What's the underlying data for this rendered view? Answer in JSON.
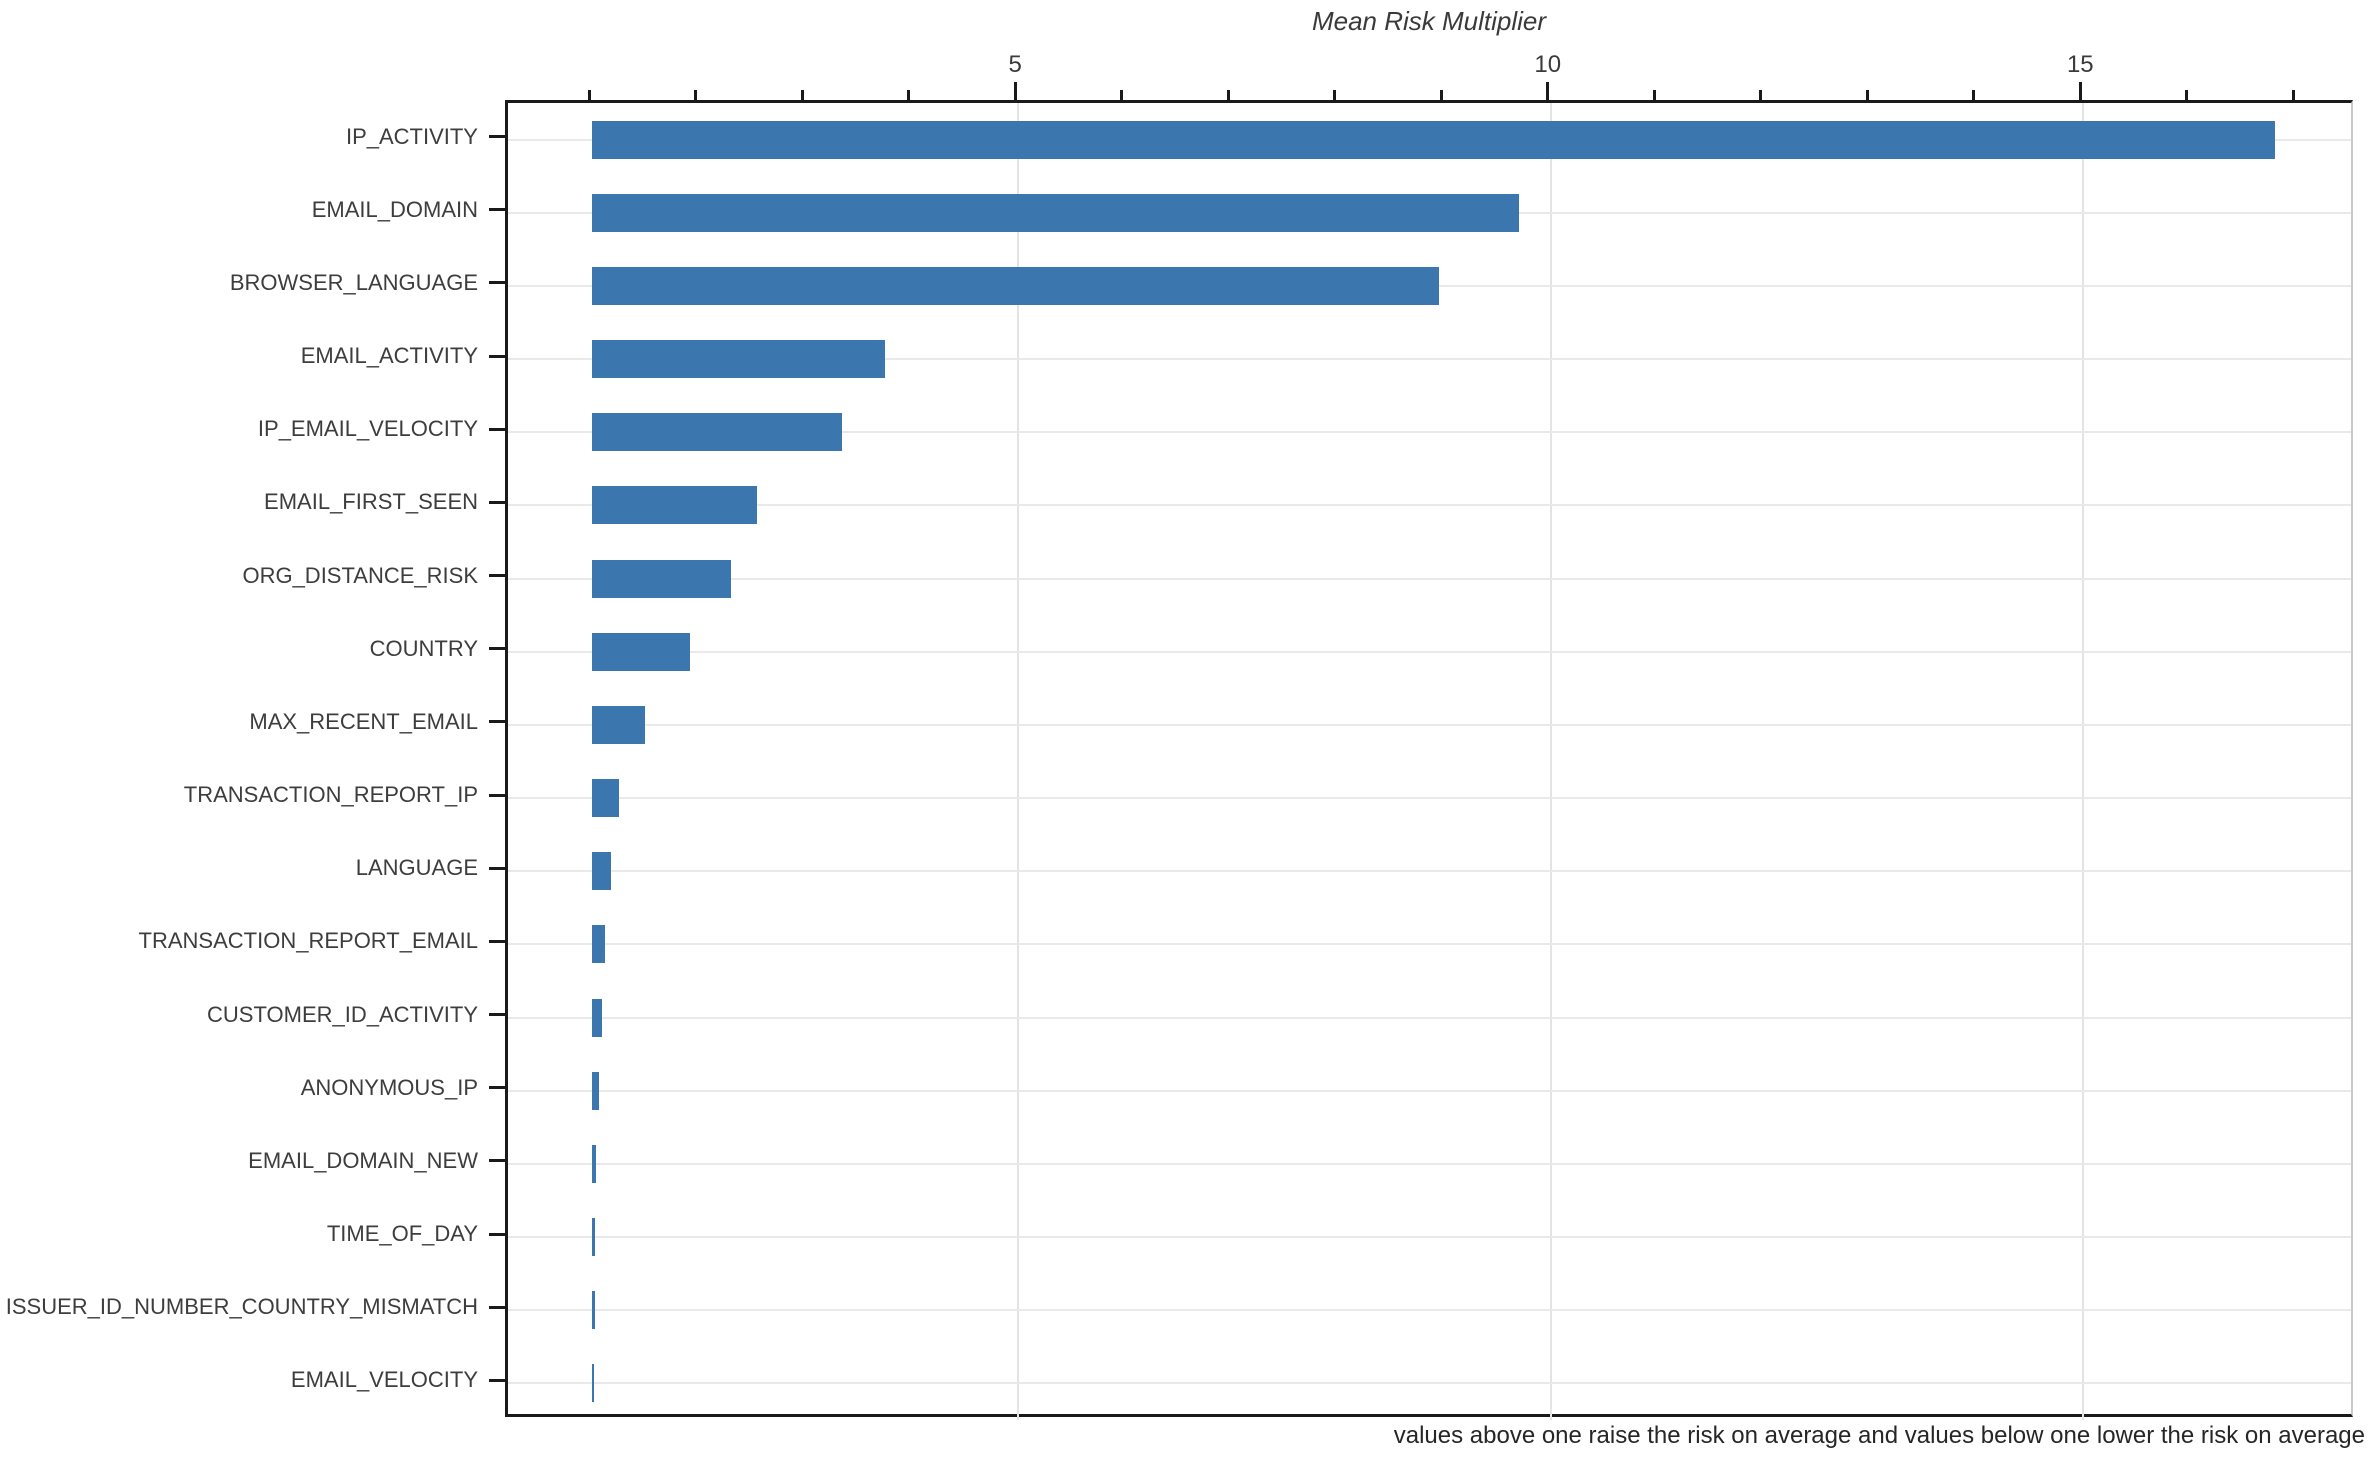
{
  "figure": {
    "title": "Mean Risk Multiplier",
    "footnote": "values above one raise the risk on average and values below one lower the risk on average"
  },
  "chart_data": {
    "type": "bar",
    "orientation": "horizontal",
    "title": "Mean Risk Multiplier",
    "xlabel": "Mean Risk Multiplier",
    "ylabel": "",
    "categories": [
      "IP_ACTIVITY",
      "EMAIL_DOMAIN",
      "BROWSER_LANGUAGE",
      "EMAIL_ACTIVITY",
      "IP_EMAIL_VELOCITY",
      "EMAIL_FIRST_SEEN",
      "ORG_DISTANCE_RISK",
      "COUNTRY",
      "MAX_RECENT_EMAIL",
      "TRANSACTION_REPORT_IP",
      "LANGUAGE",
      "TRANSACTION_REPORT_EMAIL",
      "CUSTOMER_ID_ACTIVITY",
      "ANONYMOUS_IP",
      "EMAIL_DOMAIN_NEW",
      "TIME_OF_DAY",
      "ISSUER_ID_NUMBER_COUNTRY_MISMATCH",
      "EMAIL_VELOCITY"
    ],
    "values": [
      16.8,
      9.7,
      8.95,
      3.75,
      3.35,
      2.55,
      2.3,
      1.92,
      1.5,
      1.25,
      1.18,
      1.12,
      1.09,
      1.06,
      1.04,
      1.03,
      1.025,
      1.015
    ],
    "bar_baseline": 1,
    "xlim": [
      0.21,
      17.56
    ],
    "x_major_ticks": [
      5,
      10,
      15
    ],
    "x_minor_tick_min": 1,
    "x_minor_tick_max": 17,
    "x_minor_tick_step": 1,
    "tick_side": "top",
    "grid": "vertical at major ticks, horizontal at each category",
    "legend": "none",
    "annotation": "values above one raise the risk on average and values below one lower the risk on average",
    "colors": {
      "bar": "#3c76ae",
      "spine": "#1a1a1a",
      "right_spine": "#c9c9c9",
      "vgrid": "#e4e4e4",
      "hgrid": "#e9e9e9",
      "tick_label": "#3a3a3a",
      "category_label": "#3d3d3d",
      "footnote": "#262626",
      "background": "#ffffff"
    }
  }
}
